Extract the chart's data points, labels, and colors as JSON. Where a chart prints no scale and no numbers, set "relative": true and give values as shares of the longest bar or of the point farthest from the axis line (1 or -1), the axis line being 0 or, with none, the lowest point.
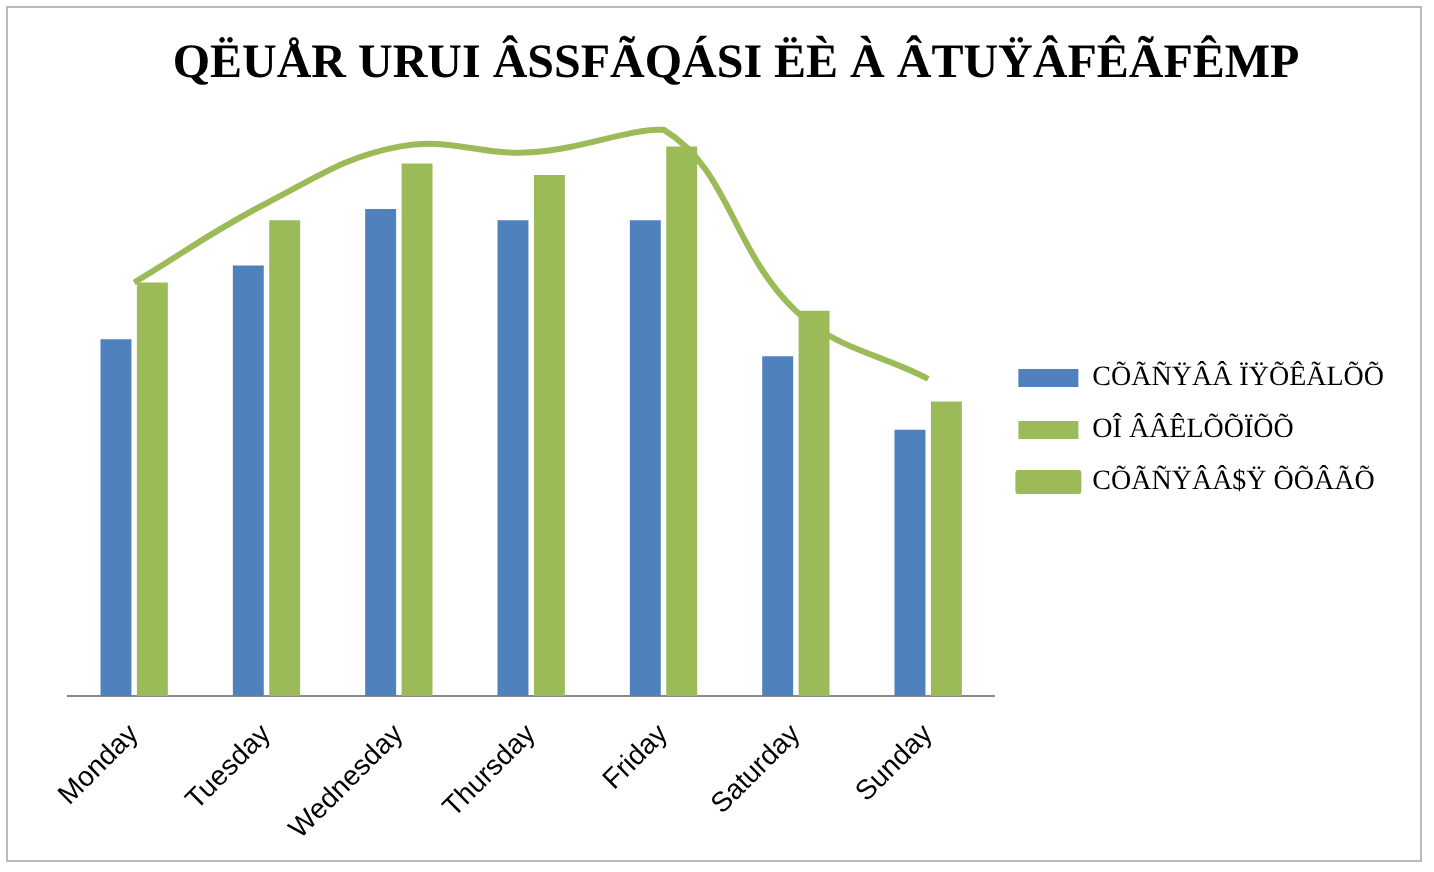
{
  "chart_data": {
    "type": "bar",
    "title": "QËUÅR URUI ÂSSFÃQÁSI ËÈ À ÂTUŸÂFÊÃFÊMP",
    "relative": true,
    "categories": [
      "Monday",
      "Tuesday",
      "Wednesday",
      "Thursday",
      "Friday",
      "Saturday",
      "Sunday"
    ],
    "series": [
      {
        "name": "CÕÃÑŸÂÂ ÏŸÕÊÃLÕÕ",
        "color": "#4f81bd",
        "values": [
          0.63,
          0.76,
          0.86,
          0.84,
          0.84,
          0.6,
          0.47
        ]
      },
      {
        "name": "OÎ ÂÂÊLÕÕÏÕÕ",
        "color": "#9bbb59",
        "values": [
          0.73,
          0.84,
          0.94,
          0.92,
          0.97,
          0.68,
          0.52
        ]
      },
      {
        "name": "CÕÃÑŸÂÂ$Ÿ ÕÕÂÃÕ",
        "type": "line",
        "color": "#9bbb59",
        "values": [
          0.73,
          0.87,
          0.97,
          0.96,
          1,
          0.68,
          0.56
        ]
      }
    ],
    "legend": "right",
    "marker": "none"
  }
}
